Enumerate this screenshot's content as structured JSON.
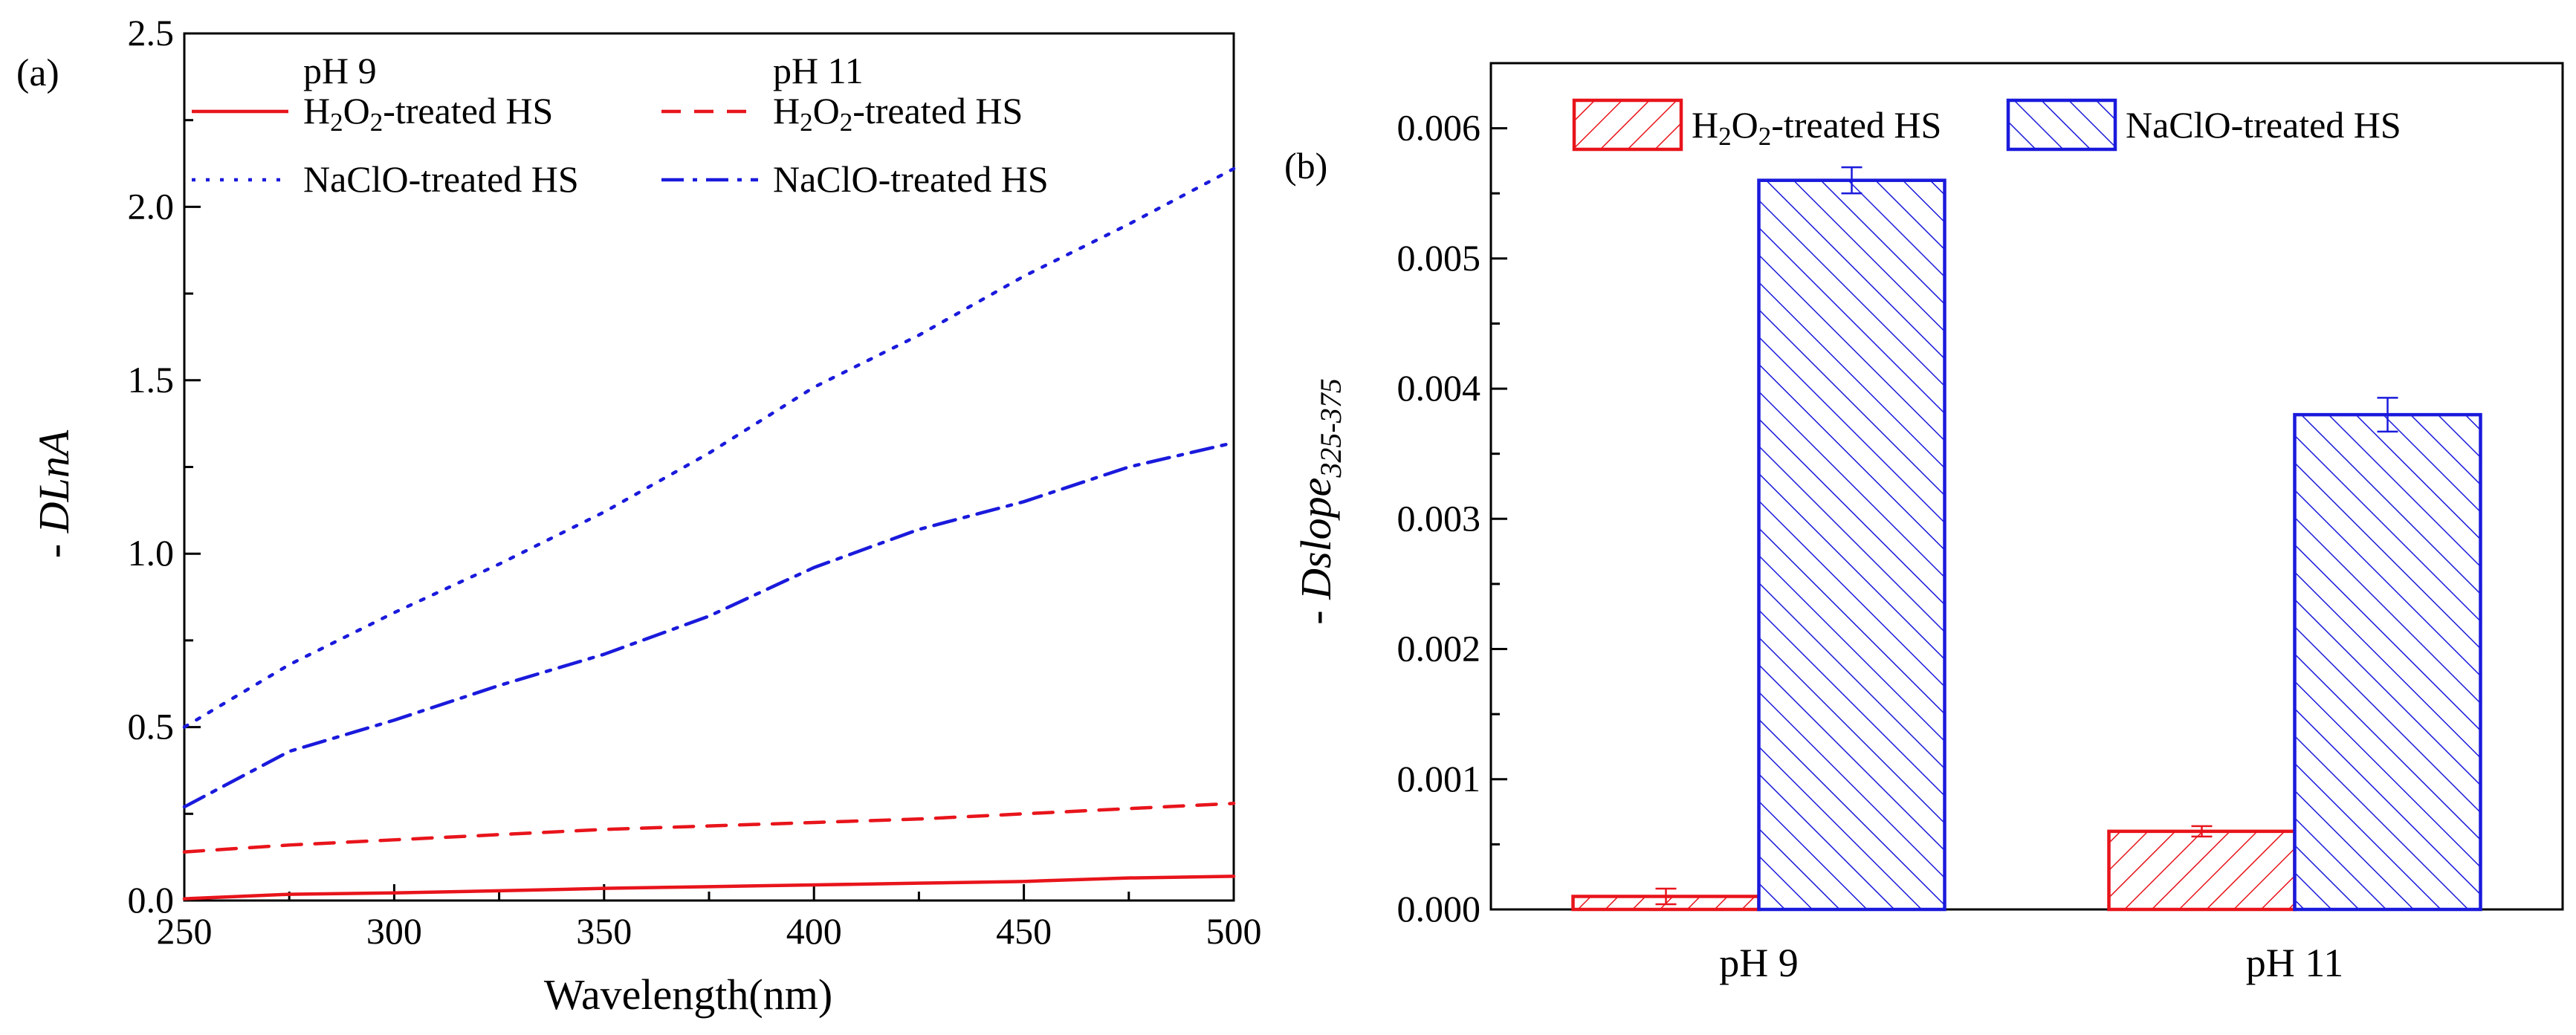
{
  "chart_data": [
    {
      "type": "line",
      "panel_label": "(a)",
      "xlabel": "Wavelength(nm)",
      "ylabel": {
        "prefix": "- ",
        "main": "DLnA"
      },
      "xlim": [
        250,
        500
      ],
      "ylim": [
        0,
        2.5
      ],
      "x_ticks": [
        "250",
        "300",
        "350",
        "400",
        "450",
        "500"
      ],
      "y_ticks": [
        "0.0",
        "0.5",
        "1.0",
        "1.5",
        "2.0",
        "2.5"
      ],
      "legend": {
        "placement": "top-left",
        "column_headers": [
          "pH 9",
          "pH 11"
        ],
        "entries": [
          {
            "series": 0,
            "parts": [
              "H",
              "2",
              "O",
              "2",
              "-treated HS"
            ]
          },
          {
            "series": 1,
            "parts": [
              "H",
              "2",
              "O",
              "2",
              "-treated HS"
            ]
          },
          {
            "series": 2,
            "parts": [
              "NaClO-treated HS"
            ]
          },
          {
            "series": 3,
            "parts": [
              "NaClO-treated HS"
            ]
          }
        ]
      },
      "x": [
        250,
        275,
        300,
        325,
        350,
        375,
        400,
        425,
        450,
        475,
        500
      ],
      "series": [
        {
          "name": "H2O2-treated HS",
          "group": "pH 9",
          "color": "#e8141b",
          "dash": "solid",
          "values": [
            0.005,
            0.018,
            0.022,
            0.028,
            0.035,
            0.04,
            0.045,
            0.05,
            0.055,
            0.065,
            0.07
          ]
        },
        {
          "name": "H2O2-treated HS",
          "group": "pH 11",
          "color": "#e8141b",
          "dash": "dash",
          "values": [
            0.14,
            0.16,
            0.175,
            0.19,
            0.205,
            0.215,
            0.225,
            0.235,
            0.25,
            0.265,
            0.28
          ]
        },
        {
          "name": "NaClO-treated HS",
          "group": "pH 9",
          "color": "#1a1adc",
          "dash": "dot",
          "values": [
            0.5,
            0.68,
            0.83,
            0.97,
            1.12,
            1.29,
            1.48,
            1.63,
            1.8,
            1.95,
            2.11
          ]
        },
        {
          "name": "NaClO-treated HS",
          "group": "pH 11",
          "color": "#1a1adc",
          "dash": "dashdot",
          "values": [
            0.27,
            0.43,
            0.52,
            0.62,
            0.71,
            0.82,
            0.96,
            1.07,
            1.15,
            1.25,
            1.32
          ]
        }
      ]
    },
    {
      "type": "bar",
      "panel_label": "(b)",
      "ylabel": {
        "prefix": "- ",
        "main": "Dslope",
        "subscript": "325-375"
      },
      "ylim": [
        0,
        0.0065
      ],
      "y_ticks": [
        "0.000",
        "0.001",
        "0.002",
        "0.003",
        "0.004",
        "0.005",
        "0.006"
      ],
      "categories": [
        "pH 9",
        "pH 11"
      ],
      "legend": {
        "placement": "top",
        "entries": [
          {
            "series": 0,
            "parts": [
              "H",
              "2",
              "O",
              "2",
              "-treated HS"
            ]
          },
          {
            "series": 1,
            "parts": [
              "NaClO-treated HS"
            ]
          }
        ]
      },
      "series": [
        {
          "name": "H2O2-treated HS",
          "color": "#e8141b",
          "hatch": "forward",
          "values": [
            0.0001,
            0.0006
          ],
          "errors": [
            6e-05,
            4e-05
          ]
        },
        {
          "name": "NaClO-treated HS",
          "color": "#1a1adc",
          "hatch": "backward",
          "values": [
            0.0056,
            0.0038
          ],
          "errors": [
            0.0001,
            0.00013
          ]
        }
      ]
    }
  ]
}
